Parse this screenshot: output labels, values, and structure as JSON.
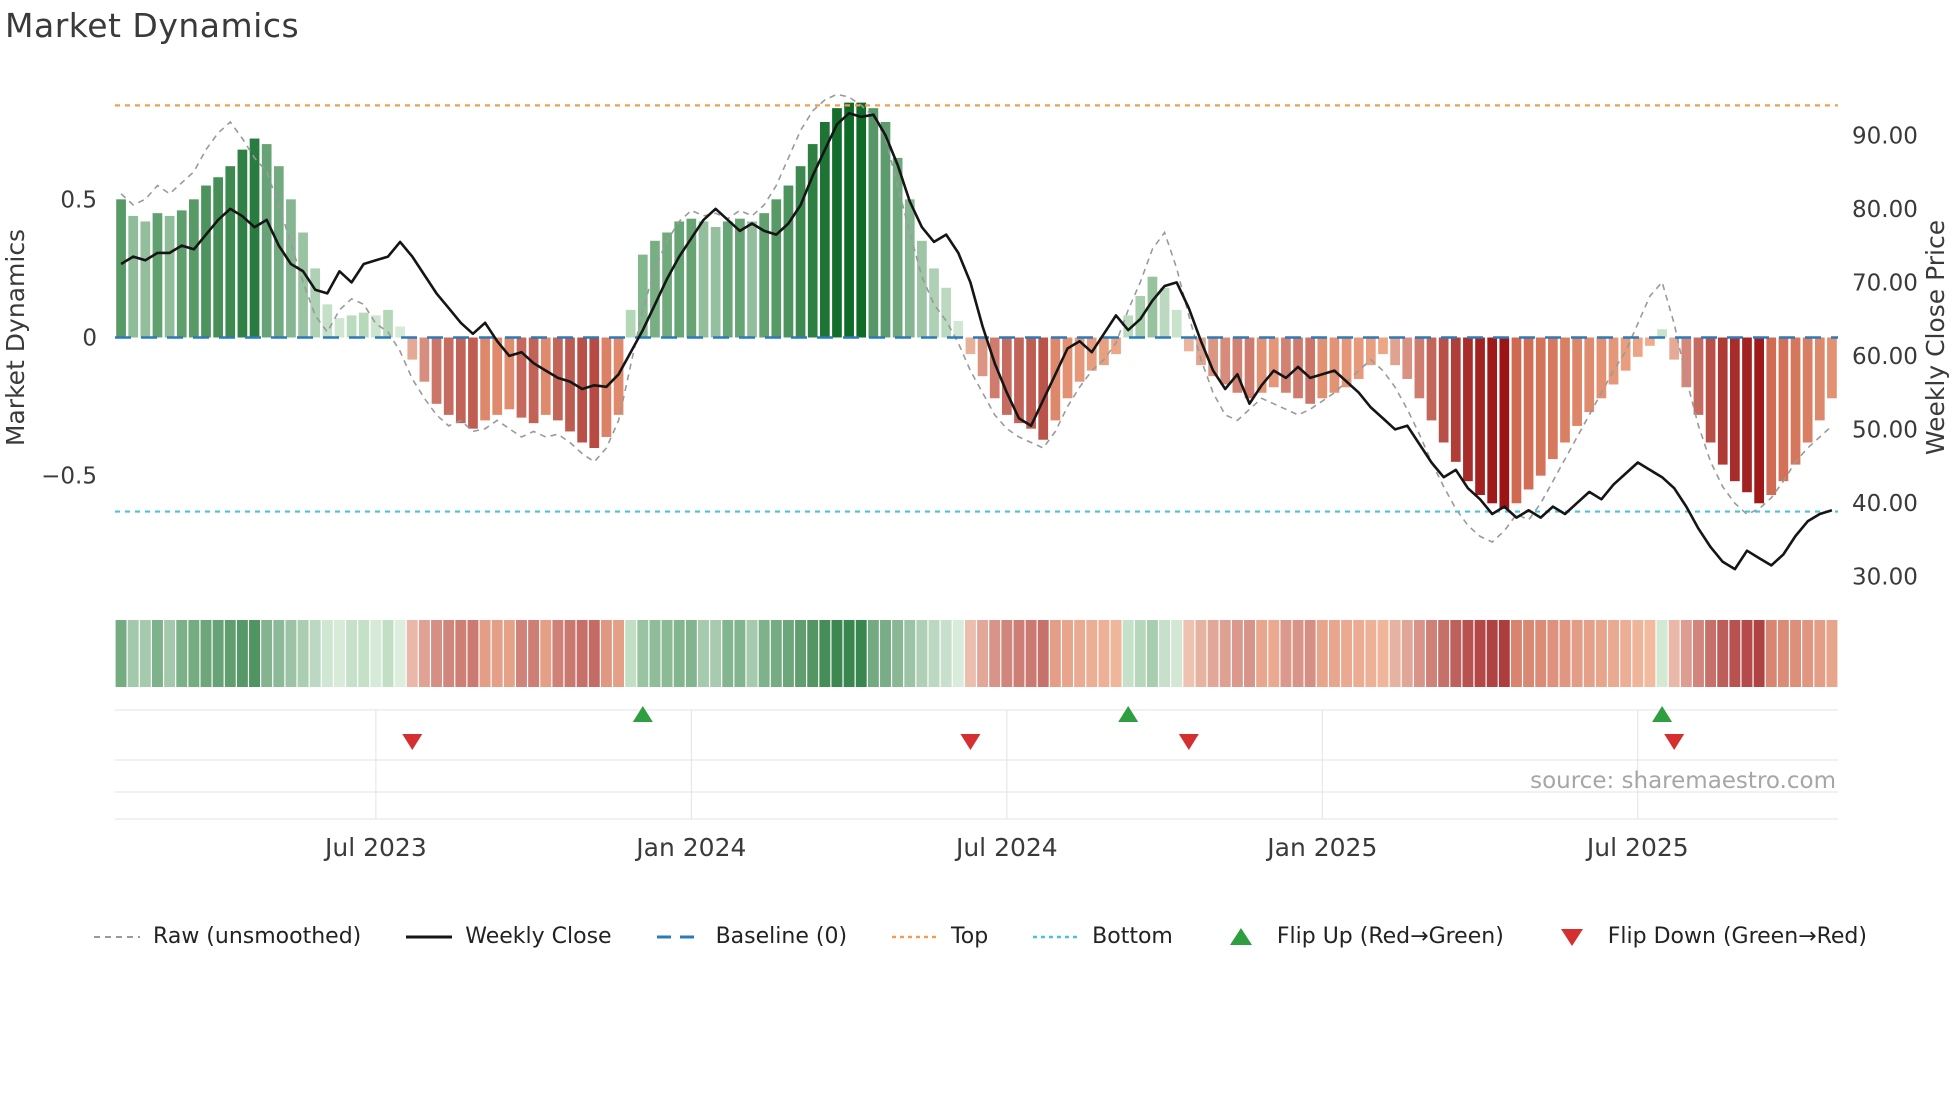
{
  "title": "Market Dynamics",
  "source": "source: sharemaestro.com",
  "axes": {
    "left_label": "Market Dynamics",
    "right_label": "Weekly Close Price",
    "left_ticks": [
      {
        "value": 0.5,
        "label": "0.5"
      },
      {
        "value": 0,
        "label": "0"
      },
      {
        "value": -0.5,
        "label": "−0.5"
      }
    ],
    "right_ticks": [
      {
        "value": 90,
        "label": "90.00"
      },
      {
        "value": 80,
        "label": "80.00"
      },
      {
        "value": 70,
        "label": "70.00"
      },
      {
        "value": 60,
        "label": "60.00"
      },
      {
        "value": 50,
        "label": "50.00"
      },
      {
        "value": 40,
        "label": "40.00"
      },
      {
        "value": 30,
        "label": "30.00"
      }
    ]
  },
  "legend": [
    {
      "label": "Raw (unsmoothed)",
      "icon": "dash-gray"
    },
    {
      "label": "Weekly Close",
      "icon": "solid-black"
    },
    {
      "label": "Baseline (0)",
      "icon": "dash-blue"
    },
    {
      "label": "Top",
      "icon": "dot-orange"
    },
    {
      "label": "Bottom",
      "icon": "dot-cyan"
    },
    {
      "label": "Flip Up (Red→Green)",
      "icon": "tri-up-green"
    },
    {
      "label": "Flip Down (Green→Red)",
      "icon": "tri-down-red"
    }
  ],
  "colors": {
    "bar_green_dark": "#0f6b28",
    "bar_green_light": "#d4ecd4",
    "bar_red_dark": "#9c1414",
    "bar_red_light": "#f6cdb4",
    "bar_red_salmon": "#ef9f77",
    "raw_line": "#9a9a9a",
    "close_line": "#151515",
    "baseline": "#2b7bba",
    "top_line": "#f0a04b",
    "bottom_line": "#49c3d8",
    "flip_up": "#2f9e41",
    "flip_down": "#d62f2f",
    "grid": "#e3e3e3",
    "tick_text": "#3a3a3a"
  },
  "chart_data": {
    "type": "bar+line",
    "title": "Market Dynamics",
    "weeks": 142,
    "x_ticks": [
      {
        "index": 21,
        "label": "Jul 2023"
      },
      {
        "index": 47,
        "label": "Jan 2024"
      },
      {
        "index": 73,
        "label": "Jul 2024"
      },
      {
        "index": 99,
        "label": "Jan 2025"
      },
      {
        "index": 125,
        "label": "Jul 2025"
      }
    ],
    "left_ylim": [
      -0.95,
      0.95
    ],
    "right_ylim": [
      26.8,
      98.2
    ],
    "baseline": 0,
    "top": 0.84,
    "bottom": -0.63,
    "flip_up_indices": [
      43,
      83,
      127
    ],
    "flip_down_indices": [
      24,
      70,
      88,
      128
    ],
    "series": [
      {
        "name": "Market Dynamics (smoothed bars)",
        "axis": "left",
        "values": [
          0.5,
          0.44,
          0.42,
          0.45,
          0.44,
          0.46,
          0.5,
          0.55,
          0.58,
          0.62,
          0.68,
          0.72,
          0.7,
          0.62,
          0.5,
          0.38,
          0.25,
          0.12,
          0.07,
          0.08,
          0.09,
          0.08,
          0.1,
          0.04,
          -0.08,
          -0.16,
          -0.24,
          -0.28,
          -0.31,
          -0.33,
          -0.3,
          -0.28,
          -0.26,
          -0.29,
          -0.31,
          -0.28,
          -0.3,
          -0.34,
          -0.38,
          -0.4,
          -0.36,
          -0.28,
          0.1,
          0.3,
          0.35,
          0.38,
          0.42,
          0.43,
          0.42,
          0.4,
          0.42,
          0.43,
          0.42,
          0.45,
          0.5,
          0.55,
          0.62,
          0.7,
          0.78,
          0.83,
          0.85,
          0.85,
          0.83,
          0.78,
          0.65,
          0.5,
          0.35,
          0.25,
          0.18,
          0.06,
          -0.06,
          -0.14,
          -0.22,
          -0.28,
          -0.31,
          -0.33,
          -0.37,
          -0.3,
          -0.22,
          -0.16,
          -0.12,
          -0.1,
          -0.06,
          0.08,
          0.15,
          0.22,
          0.18,
          0.1,
          -0.05,
          -0.1,
          -0.14,
          -0.17,
          -0.2,
          -0.22,
          -0.2,
          -0.18,
          -0.2,
          -0.22,
          -0.24,
          -0.22,
          -0.2,
          -0.18,
          -0.15,
          -0.1,
          -0.06,
          -0.1,
          -0.15,
          -0.22,
          -0.3,
          -0.38,
          -0.45,
          -0.52,
          -0.57,
          -0.6,
          -0.62,
          -0.6,
          -0.55,
          -0.5,
          -0.44,
          -0.38,
          -0.32,
          -0.27,
          -0.22,
          -0.17,
          -0.12,
          -0.07,
          -0.03,
          0.03,
          -0.08,
          -0.18,
          -0.28,
          -0.38,
          -0.46,
          -0.52,
          -0.56,
          -0.6,
          -0.57,
          -0.52,
          -0.46,
          -0.38,
          -0.3,
          -0.22
        ]
      },
      {
        "name": "Raw (unsmoothed)",
        "axis": "left",
        "values": [
          0.52,
          0.48,
          0.5,
          0.55,
          0.52,
          0.56,
          0.6,
          0.68,
          0.74,
          0.78,
          0.72,
          0.65,
          0.6,
          0.48,
          0.34,
          0.2,
          0.08,
          0.02,
          0.1,
          0.14,
          0.12,
          0.05,
          0.02,
          -0.05,
          -0.15,
          -0.22,
          -0.28,
          -0.32,
          -0.3,
          -0.34,
          -0.33,
          -0.3,
          -0.33,
          -0.36,
          -0.34,
          -0.36,
          -0.35,
          -0.38,
          -0.42,
          -0.45,
          -0.4,
          -0.3,
          -0.1,
          0.1,
          0.25,
          0.35,
          0.42,
          0.46,
          0.44,
          0.45,
          0.43,
          0.46,
          0.44,
          0.48,
          0.55,
          0.65,
          0.75,
          0.82,
          0.86,
          0.88,
          0.87,
          0.84,
          0.8,
          0.72,
          0.55,
          0.38,
          0.22,
          0.12,
          0.06,
          -0.02,
          -0.12,
          -0.2,
          -0.28,
          -0.33,
          -0.36,
          -0.38,
          -0.4,
          -0.34,
          -0.25,
          -0.18,
          -0.12,
          -0.08,
          -0.02,
          0.1,
          0.2,
          0.32,
          0.38,
          0.25,
          0.08,
          -0.08,
          -0.2,
          -0.28,
          -0.3,
          -0.26,
          -0.22,
          -0.24,
          -0.26,
          -0.28,
          -0.26,
          -0.23,
          -0.2,
          -0.16,
          -0.12,
          -0.08,
          -0.12,
          -0.18,
          -0.26,
          -0.35,
          -0.45,
          -0.54,
          -0.62,
          -0.68,
          -0.72,
          -0.74,
          -0.7,
          -0.64,
          -0.66,
          -0.6,
          -0.52,
          -0.44,
          -0.36,
          -0.28,
          -0.2,
          -0.12,
          -0.05,
          0.05,
          0.15,
          0.2,
          0.05,
          -0.15,
          -0.32,
          -0.45,
          -0.54,
          -0.6,
          -0.64,
          -0.62,
          -0.58,
          -0.52,
          -0.45,
          -0.4,
          -0.36,
          -0.32
        ]
      },
      {
        "name": "Weekly Close",
        "axis": "right",
        "values": [
          72.5,
          73.5,
          73.0,
          74.0,
          74.0,
          75.0,
          74.5,
          76.5,
          78.5,
          80.0,
          79.0,
          77.5,
          78.5,
          75.0,
          72.5,
          71.5,
          69.0,
          68.5,
          71.5,
          70.0,
          72.5,
          73.0,
          73.5,
          75.5,
          73.5,
          71.0,
          68.5,
          66.5,
          64.5,
          63.0,
          64.5,
          62.0,
          60.0,
          60.5,
          59.0,
          58.0,
          57.0,
          56.5,
          55.5,
          56.0,
          55.8,
          57.5,
          60.5,
          63.5,
          67.0,
          70.5,
          73.5,
          76.0,
          78.5,
          80.0,
          78.5,
          77.0,
          78.0,
          77.0,
          76.5,
          78.0,
          80.5,
          84.5,
          88.0,
          91.5,
          93.0,
          92.5,
          92.8,
          90.0,
          86.0,
          81.0,
          77.5,
          75.5,
          76.5,
          74.0,
          70.0,
          64.0,
          59.0,
          55.0,
          51.5,
          50.5,
          54.0,
          57.5,
          61.0,
          62.0,
          60.5,
          63.0,
          65.5,
          63.5,
          65.0,
          67.5,
          69.5,
          70.0,
          66.5,
          62.0,
          58.0,
          55.5,
          57.5,
          53.5,
          56.0,
          58.0,
          57.0,
          58.5,
          57.0,
          57.5,
          58.0,
          56.5,
          55.0,
          53.0,
          51.5,
          50.0,
          50.5,
          48.0,
          45.5,
          43.5,
          44.5,
          42.0,
          40.5,
          38.5,
          39.5,
          38.0,
          39.0,
          38.0,
          39.5,
          38.5,
          40.0,
          41.5,
          40.5,
          42.5,
          44.0,
          45.5,
          44.5,
          43.5,
          42.0,
          39.5,
          36.5,
          34.0,
          32.0,
          31.0,
          33.5,
          32.5,
          31.5,
          33.0,
          35.5,
          37.5,
          38.5,
          39.0
        ]
      }
    ]
  }
}
